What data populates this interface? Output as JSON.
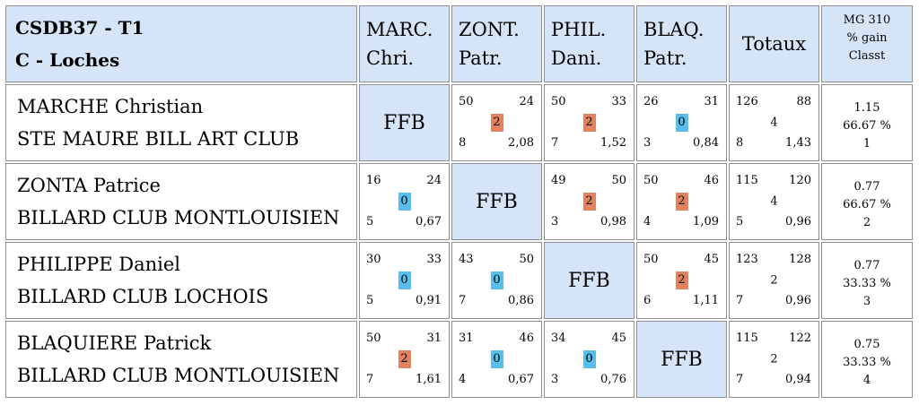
{
  "header": {
    "title_line1": "CSDB37 - T1",
    "title_line2": "C - Loches",
    "columns": [
      {
        "line1": "MARC.",
        "line2": "Chri."
      },
      {
        "line1": "ZONT.",
        "line2": "Patr."
      },
      {
        "line1": "PHIL.",
        "line2": "Dani."
      },
      {
        "line1": "BLAQ.",
        "line2": "Patr."
      }
    ],
    "totals_label": "Totaux",
    "mg_line1": "MG 310",
    "mg_line2": "% gain",
    "mg_line3": "Classt"
  },
  "ffb_label": "FFB",
  "rows": [
    {
      "name": "MARCHE Christian",
      "club": "STE MAURE BILL ART CLUB",
      "matches": [
        null,
        {
          "tl": "50",
          "tr": "24",
          "pts": "2",
          "bl": "8",
          "br": "2,08"
        },
        {
          "tl": "50",
          "tr": "33",
          "pts": "2",
          "bl": "7",
          "br": "1,52"
        },
        {
          "tl": "26",
          "tr": "31",
          "pts": "0",
          "bl": "3",
          "br": "0,84"
        }
      ],
      "totals": {
        "tl": "126",
        "tr": "88",
        "mid": "4",
        "bl": "8",
        "br": "1,43"
      },
      "stats": {
        "mg": "1.15",
        "pct": "66.67 %",
        "rank": "1"
      }
    },
    {
      "name": "ZONTA Patrice",
      "club": "BILLARD CLUB MONTLOUISIEN",
      "matches": [
        {
          "tl": "16",
          "tr": "24",
          "pts": "0",
          "bl": "5",
          "br": "0,67"
        },
        null,
        {
          "tl": "49",
          "tr": "50",
          "pts": "2",
          "bl": "3",
          "br": "0,98"
        },
        {
          "tl": "50",
          "tr": "46",
          "pts": "2",
          "bl": "4",
          "br": "1,09"
        }
      ],
      "totals": {
        "tl": "115",
        "tr": "120",
        "mid": "4",
        "bl": "5",
        "br": "0,96"
      },
      "stats": {
        "mg": "0.77",
        "pct": "66.67 %",
        "rank": "2"
      }
    },
    {
      "name": "PHILIPPE Daniel",
      "club": "BILLARD CLUB LOCHOIS",
      "matches": [
        {
          "tl": "30",
          "tr": "33",
          "pts": "0",
          "bl": "5",
          "br": "0,91"
        },
        {
          "tl": "43",
          "tr": "50",
          "pts": "0",
          "bl": "7",
          "br": "0,86"
        },
        null,
        {
          "tl": "50",
          "tr": "45",
          "pts": "2",
          "bl": "6",
          "br": "1,11"
        }
      ],
      "totals": {
        "tl": "123",
        "tr": "128",
        "mid": "2",
        "bl": "7",
        "br": "0,96"
      },
      "stats": {
        "mg": "0.77",
        "pct": "33.33 %",
        "rank": "3"
      }
    },
    {
      "name": "BLAQUIERE Patrick",
      "club": "BILLARD CLUB MONTLOUISIEN",
      "matches": [
        {
          "tl": "50",
          "tr": "31",
          "pts": "2",
          "bl": "7",
          "br": "1,61"
        },
        {
          "tl": "31",
          "tr": "46",
          "pts": "0",
          "bl": "4",
          "br": "0,67"
        },
        {
          "tl": "34",
          "tr": "45",
          "pts": "0",
          "bl": "3",
          "br": "0,76"
        },
        null
      ],
      "totals": {
        "tl": "115",
        "tr": "122",
        "mid": "2",
        "bl": "7",
        "br": "0,94"
      },
      "stats": {
        "mg": "0.75",
        "pct": "33.33 %",
        "rank": "4"
      }
    }
  ],
  "colors": {
    "win_badge": "#e2825f",
    "loss_badge": "#57bdeb",
    "header_bg": "#d6e4f8"
  }
}
